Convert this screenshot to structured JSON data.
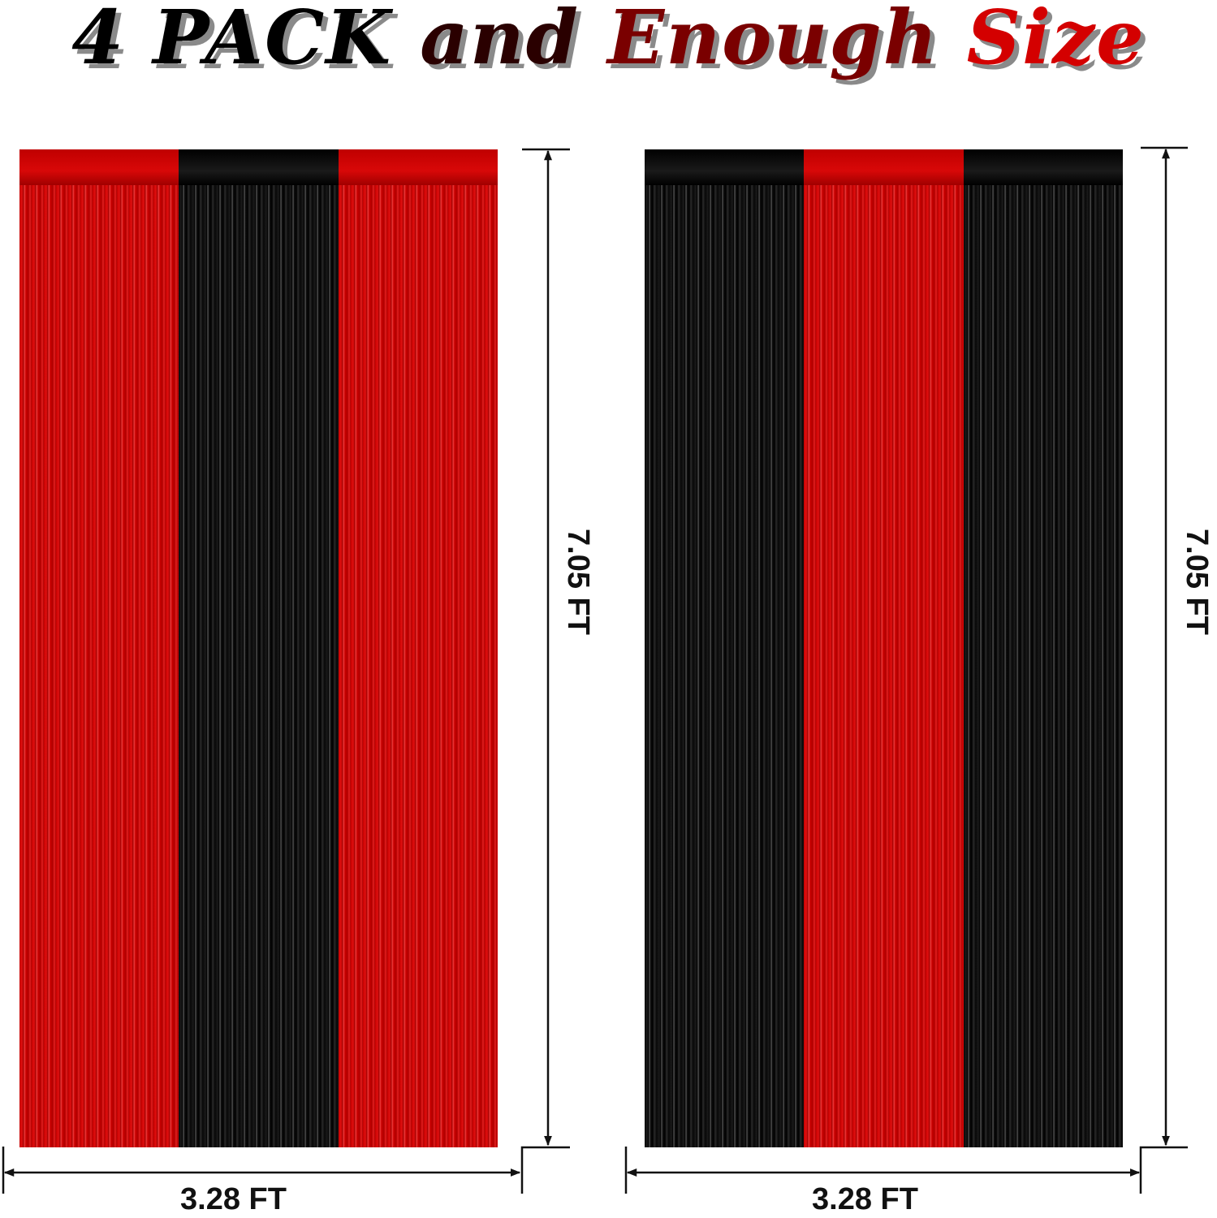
{
  "title": {
    "part1": "4 PACK",
    "part2": "and",
    "part3": "Enough",
    "part4": "Size"
  },
  "curtains": [
    {
      "panels": [
        "red",
        "black",
        "red"
      ],
      "width_label": "3.28 FT",
      "height_label": "7.05 FT"
    },
    {
      "panels": [
        "black",
        "red",
        "black"
      ],
      "width_label": "3.28 FT",
      "height_label": "7.05 FT"
    }
  ],
  "colors": {
    "red": "#c50000",
    "black": "#0a0a0a",
    "dark_red": "#7a0000"
  }
}
